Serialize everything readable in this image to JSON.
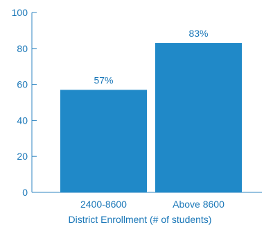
{
  "colors": {
    "bar": "#2089c8",
    "text": "#1a77b8",
    "axis": "#2f86c2",
    "background": "#ffffff"
  },
  "chart_data": {
    "type": "bar",
    "title": "",
    "xlabel": "District Enrollment (# of students)",
    "ylabel": "",
    "ylim": [
      0,
      100
    ],
    "yticks": [
      0,
      20,
      40,
      60,
      80,
      100
    ],
    "ytick_labels": [
      "0",
      "20",
      "40",
      "60",
      "80",
      "100"
    ],
    "grid": false,
    "legend": "none",
    "categories": [
      "2400-8600",
      "Above 8600"
    ],
    "values": [
      57,
      83
    ],
    "data_labels": [
      "57%",
      "83%"
    ]
  }
}
